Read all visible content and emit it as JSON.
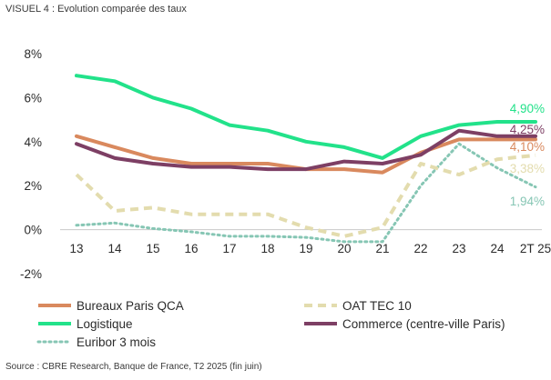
{
  "header": {
    "title": "VISUEL 4 : Evolution comparée des taux"
  },
  "footer": {
    "source": "Source : CBRE Research, Banque de France, T2 2025 (fin juin)"
  },
  "chart_data": {
    "type": "line",
    "title": "VISUEL 4 : Evolution comparée des taux",
    "xlabel": "",
    "ylabel": "",
    "categories": [
      "13",
      "14",
      "15",
      "16",
      "17",
      "18",
      "19",
      "20",
      "21",
      "22",
      "23",
      "24",
      "2T 25"
    ],
    "yticks": [
      "8%",
      "6%",
      "4%",
      "2%",
      "0%",
      "-2%"
    ],
    "ylim": [
      -2,
      8
    ],
    "grid": false,
    "legend_position": "bottom",
    "series": [
      {
        "name": "Bureaux Paris QCA",
        "color": "#d9895e",
        "dash": "solid",
        "values": [
          4.25,
          3.75,
          3.25,
          3.0,
          3.0,
          3.0,
          2.75,
          2.75,
          2.6,
          3.5,
          4.1,
          4.1,
          4.1
        ],
        "end_label": "4,10%"
      },
      {
        "name": "OAT TEC 10",
        "color": "#e3dcae",
        "dash": "dashed",
        "values": [
          2.5,
          0.85,
          1.0,
          0.7,
          0.7,
          0.7,
          0.1,
          -0.3,
          0.1,
          3.0,
          2.5,
          3.2,
          3.38
        ],
        "end_label": "3,38%"
      },
      {
        "name": "Logistique",
        "color": "#22e28a",
        "dash": "solid",
        "values": [
          7.0,
          6.75,
          6.0,
          5.5,
          4.75,
          4.5,
          4.0,
          3.75,
          3.25,
          4.25,
          4.75,
          4.9,
          4.9
        ],
        "end_label": "4,90%"
      },
      {
        "name": "Commerce (centre-ville Paris)",
        "color": "#7d3f64",
        "dash": "solid",
        "values": [
          3.9,
          3.25,
          3.0,
          2.85,
          2.85,
          2.75,
          2.75,
          3.1,
          3.0,
          3.4,
          4.5,
          4.25,
          4.25
        ],
        "end_label": "4,25%"
      },
      {
        "name": "Euribor 3 mois",
        "color": "#86c6b4",
        "dash": "dotted",
        "values": [
          0.2,
          0.3,
          0.05,
          -0.1,
          -0.3,
          -0.3,
          -0.35,
          -0.55,
          -0.55,
          2.0,
          3.9,
          2.8,
          1.94
        ],
        "end_label": "1,94%"
      }
    ]
  }
}
